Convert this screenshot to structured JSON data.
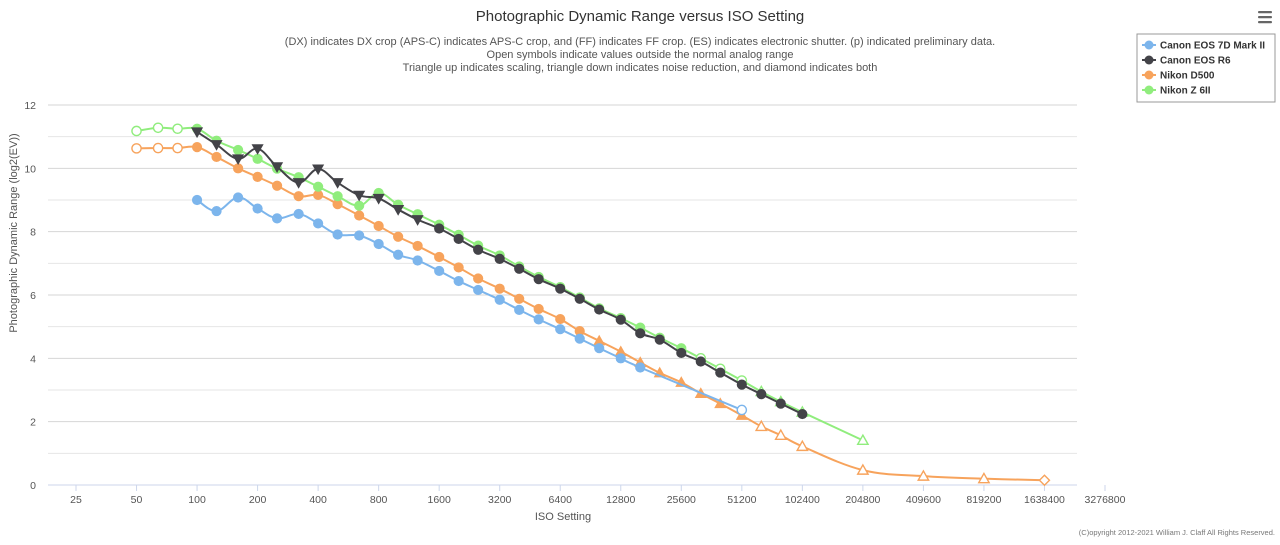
{
  "chart_data": {
    "type": "line",
    "title": "Photographic Dynamic Range versus ISO Setting",
    "subtitle": [
      "(DX) indicates DX crop (APS-C) indicates APS-C crop, and (FF) indicates FF crop. (ES) indicates electronic shutter. (p) indicated preliminary data.",
      "Open symbols indicate values outside the normal analog range",
      "Triangle up indicates scaling, triangle down indicates noise reduction, and diamond indicates both"
    ],
    "xlabel": "ISO Setting",
    "ylabel": "Photographic Dynamic Range (log2(EV))",
    "x_scale": "log2",
    "x_ticks": [
      25,
      50,
      100,
      200,
      400,
      800,
      1600,
      3200,
      6400,
      12800,
      25600,
      51200,
      102400,
      204800,
      409600,
      819200,
      1638400,
      3276800
    ],
    "y_ticks": [
      0,
      2,
      4,
      6,
      8,
      10,
      12
    ],
    "xlim": [
      25,
      3276800
    ],
    "ylim": [
      0,
      12
    ],
    "grid": true,
    "legend_position": "top-right",
    "credit": "(C)opyright 2012-2021 William J. Claff All Rights Reserved.",
    "series": [
      {
        "name": "Canon EOS 7D Mark II",
        "color": "#7cb5ec",
        "points": [
          {
            "x": 100,
            "y": 9.0,
            "m": "circle"
          },
          {
            "x": 125,
            "y": 8.65,
            "m": "circle"
          },
          {
            "x": 160,
            "y": 9.08,
            "m": "circle"
          },
          {
            "x": 200,
            "y": 8.73,
            "m": "circle"
          },
          {
            "x": 250,
            "y": 8.42,
            "m": "circle"
          },
          {
            "x": 320,
            "y": 8.56,
            "m": "circle"
          },
          {
            "x": 400,
            "y": 8.26,
            "m": "circle"
          },
          {
            "x": 500,
            "y": 7.91,
            "m": "circle"
          },
          {
            "x": 640,
            "y": 7.88,
            "m": "circle"
          },
          {
            "x": 800,
            "y": 7.61,
            "m": "circle"
          },
          {
            "x": 1000,
            "y": 7.27,
            "m": "circle"
          },
          {
            "x": 1250,
            "y": 7.09,
            "m": "circle"
          },
          {
            "x": 1600,
            "y": 6.76,
            "m": "circle"
          },
          {
            "x": 2000,
            "y": 6.44,
            "m": "circle"
          },
          {
            "x": 2500,
            "y": 6.16,
            "m": "circle"
          },
          {
            "x": 3200,
            "y": 5.85,
            "m": "circle"
          },
          {
            "x": 4000,
            "y": 5.53,
            "m": "circle"
          },
          {
            "x": 5000,
            "y": 5.23,
            "m": "circle"
          },
          {
            "x": 6400,
            "y": 4.92,
            "m": "circle"
          },
          {
            "x": 8000,
            "y": 4.62,
            "m": "circle"
          },
          {
            "x": 10000,
            "y": 4.32,
            "m": "circle"
          },
          {
            "x": 12800,
            "y": 4.0,
            "m": "circle"
          },
          {
            "x": 16000,
            "y": 3.71,
            "m": "circle"
          },
          {
            "x": 51200,
            "y": 2.37,
            "m": "circle-open"
          }
        ]
      },
      {
        "name": "Canon EOS R6",
        "color": "#434348",
        "points": [
          {
            "x": 100,
            "y": 11.15,
            "m": "tri-down"
          },
          {
            "x": 125,
            "y": 10.75,
            "m": "tri-down"
          },
          {
            "x": 160,
            "y": 10.3,
            "m": "tri-down"
          },
          {
            "x": 200,
            "y": 10.62,
            "m": "tri-down"
          },
          {
            "x": 250,
            "y": 10.05,
            "m": "tri-down"
          },
          {
            "x": 320,
            "y": 9.55,
            "m": "tri-down"
          },
          {
            "x": 400,
            "y": 9.98,
            "m": "tri-down"
          },
          {
            "x": 500,
            "y": 9.55,
            "m": "tri-down"
          },
          {
            "x": 640,
            "y": 9.15,
            "m": "tri-down"
          },
          {
            "x": 800,
            "y": 9.05,
            "m": "tri-down"
          },
          {
            "x": 1000,
            "y": 8.7,
            "m": "tri-down"
          },
          {
            "x": 1250,
            "y": 8.38,
            "m": "tri-down"
          },
          {
            "x": 1600,
            "y": 8.1,
            "m": "circle"
          },
          {
            "x": 2000,
            "y": 7.77,
            "m": "circle"
          },
          {
            "x": 2500,
            "y": 7.43,
            "m": "circle"
          },
          {
            "x": 3200,
            "y": 7.14,
            "m": "circle"
          },
          {
            "x": 4000,
            "y": 6.83,
            "m": "circle"
          },
          {
            "x": 5000,
            "y": 6.5,
            "m": "circle"
          },
          {
            "x": 6400,
            "y": 6.2,
            "m": "circle"
          },
          {
            "x": 8000,
            "y": 5.88,
            "m": "circle"
          },
          {
            "x": 10000,
            "y": 5.54,
            "m": "circle"
          },
          {
            "x": 12800,
            "y": 5.22,
            "m": "circle"
          },
          {
            "x": 16000,
            "y": 4.79,
            "m": "circle"
          },
          {
            "x": 20000,
            "y": 4.59,
            "m": "circle"
          },
          {
            "x": 25600,
            "y": 4.17,
            "m": "circle"
          },
          {
            "x": 32000,
            "y": 3.9,
            "m": "circle"
          },
          {
            "x": 40000,
            "y": 3.55,
            "m": "circle"
          },
          {
            "x": 51200,
            "y": 3.17,
            "m": "circle"
          },
          {
            "x": 64000,
            "y": 2.87,
            "m": "circle"
          },
          {
            "x": 80000,
            "y": 2.57,
            "m": "circle"
          },
          {
            "x": 102400,
            "y": 2.24,
            "m": "circle"
          }
        ]
      },
      {
        "name": "Nikon D500",
        "color": "#f7a35c",
        "points": [
          {
            "x": 50,
            "y": 10.63,
            "m": "circle-open"
          },
          {
            "x": 64,
            "y": 10.64,
            "m": "circle-open"
          },
          {
            "x": 80,
            "y": 10.64,
            "m": "circle-open"
          },
          {
            "x": 100,
            "y": 10.67,
            "m": "circle"
          },
          {
            "x": 125,
            "y": 10.36,
            "m": "circle"
          },
          {
            "x": 160,
            "y": 10.0,
            "m": "circle"
          },
          {
            "x": 200,
            "y": 9.73,
            "m": "circle"
          },
          {
            "x": 250,
            "y": 9.45,
            "m": "circle"
          },
          {
            "x": 320,
            "y": 9.12,
            "m": "circle"
          },
          {
            "x": 400,
            "y": 9.16,
            "m": "circle"
          },
          {
            "x": 500,
            "y": 8.87,
            "m": "circle"
          },
          {
            "x": 640,
            "y": 8.51,
            "m": "circle"
          },
          {
            "x": 800,
            "y": 8.18,
            "m": "circle"
          },
          {
            "x": 1000,
            "y": 7.84,
            "m": "circle"
          },
          {
            "x": 1250,
            "y": 7.55,
            "m": "circle"
          },
          {
            "x": 1600,
            "y": 7.2,
            "m": "circle"
          },
          {
            "x": 2000,
            "y": 6.87,
            "m": "circle"
          },
          {
            "x": 2500,
            "y": 6.52,
            "m": "circle"
          },
          {
            "x": 3200,
            "y": 6.2,
            "m": "circle"
          },
          {
            "x": 4000,
            "y": 5.88,
            "m": "circle"
          },
          {
            "x": 5000,
            "y": 5.56,
            "m": "circle"
          },
          {
            "x": 6400,
            "y": 5.24,
            "m": "circle"
          },
          {
            "x": 8000,
            "y": 4.86,
            "m": "circle"
          },
          {
            "x": 10000,
            "y": 4.55,
            "m": "tri-up"
          },
          {
            "x": 12800,
            "y": 4.21,
            "m": "tri-up"
          },
          {
            "x": 16000,
            "y": 3.87,
            "m": "tri-up"
          },
          {
            "x": 20000,
            "y": 3.54,
            "m": "tri-up"
          },
          {
            "x": 25600,
            "y": 3.24,
            "m": "tri-up"
          },
          {
            "x": 32000,
            "y": 2.89,
            "m": "tri-up"
          },
          {
            "x": 40000,
            "y": 2.57,
            "m": "tri-up"
          },
          {
            "x": 51200,
            "y": 2.2,
            "m": "tri-up"
          },
          {
            "x": 64000,
            "y": 1.85,
            "m": "tri-up-open"
          },
          {
            "x": 80000,
            "y": 1.57,
            "m": "tri-up-open"
          },
          {
            "x": 102400,
            "y": 1.22,
            "m": "tri-up-open"
          },
          {
            "x": 204800,
            "y": 0.47,
            "m": "tri-up-open"
          },
          {
            "x": 409600,
            "y": 0.28,
            "m": "tri-up-open"
          },
          {
            "x": 819200,
            "y": 0.2,
            "m": "tri-up-open"
          },
          {
            "x": 1638400,
            "y": 0.15,
            "m": "diamond-open"
          }
        ]
      },
      {
        "name": "Nikon Z 6II",
        "color": "#90ed7d",
        "points": [
          {
            "x": 50,
            "y": 11.18,
            "m": "circle-open"
          },
          {
            "x": 64,
            "y": 11.28,
            "m": "circle-open"
          },
          {
            "x": 80,
            "y": 11.25,
            "m": "circle-open"
          },
          {
            "x": 100,
            "y": 11.25,
            "m": "circle"
          },
          {
            "x": 125,
            "y": 10.87,
            "m": "circle"
          },
          {
            "x": 160,
            "y": 10.58,
            "m": "circle"
          },
          {
            "x": 200,
            "y": 10.3,
            "m": "circle"
          },
          {
            "x": 250,
            "y": 9.99,
            "m": "circle"
          },
          {
            "x": 320,
            "y": 9.72,
            "m": "circle"
          },
          {
            "x": 400,
            "y": 9.42,
            "m": "circle"
          },
          {
            "x": 500,
            "y": 9.12,
            "m": "circle"
          },
          {
            "x": 640,
            "y": 8.82,
            "m": "circle"
          },
          {
            "x": 800,
            "y": 9.22,
            "m": "circle"
          },
          {
            "x": 1000,
            "y": 8.85,
            "m": "circle"
          },
          {
            "x": 1250,
            "y": 8.55,
            "m": "circle"
          },
          {
            "x": 1600,
            "y": 8.22,
            "m": "circle"
          },
          {
            "x": 2000,
            "y": 7.9,
            "m": "circle"
          },
          {
            "x": 2500,
            "y": 7.56,
            "m": "circle"
          },
          {
            "x": 3200,
            "y": 7.25,
            "m": "circle"
          },
          {
            "x": 4000,
            "y": 6.9,
            "m": "circle"
          },
          {
            "x": 5000,
            "y": 6.57,
            "m": "circle"
          },
          {
            "x": 6400,
            "y": 6.25,
            "m": "circle"
          },
          {
            "x": 8000,
            "y": 5.92,
            "m": "circle"
          },
          {
            "x": 10000,
            "y": 5.58,
            "m": "circle"
          },
          {
            "x": 12800,
            "y": 5.27,
            "m": "circle"
          },
          {
            "x": 16000,
            "y": 4.97,
            "m": "circle"
          },
          {
            "x": 20000,
            "y": 4.65,
            "m": "circle"
          },
          {
            "x": 25600,
            "y": 4.32,
            "m": "circle"
          },
          {
            "x": 32000,
            "y": 4.0,
            "m": "circle-open"
          },
          {
            "x": 40000,
            "y": 3.67,
            "m": "circle-open"
          },
          {
            "x": 51200,
            "y": 3.3,
            "m": "circle-open"
          },
          {
            "x": 64000,
            "y": 2.95,
            "m": "tri-up-open"
          },
          {
            "x": 80000,
            "y": 2.63,
            "m": "tri-up-open"
          },
          {
            "x": 102400,
            "y": 2.3,
            "m": "tri-up-open"
          },
          {
            "x": 204800,
            "y": 1.41,
            "m": "tri-up-open"
          }
        ]
      }
    ]
  }
}
